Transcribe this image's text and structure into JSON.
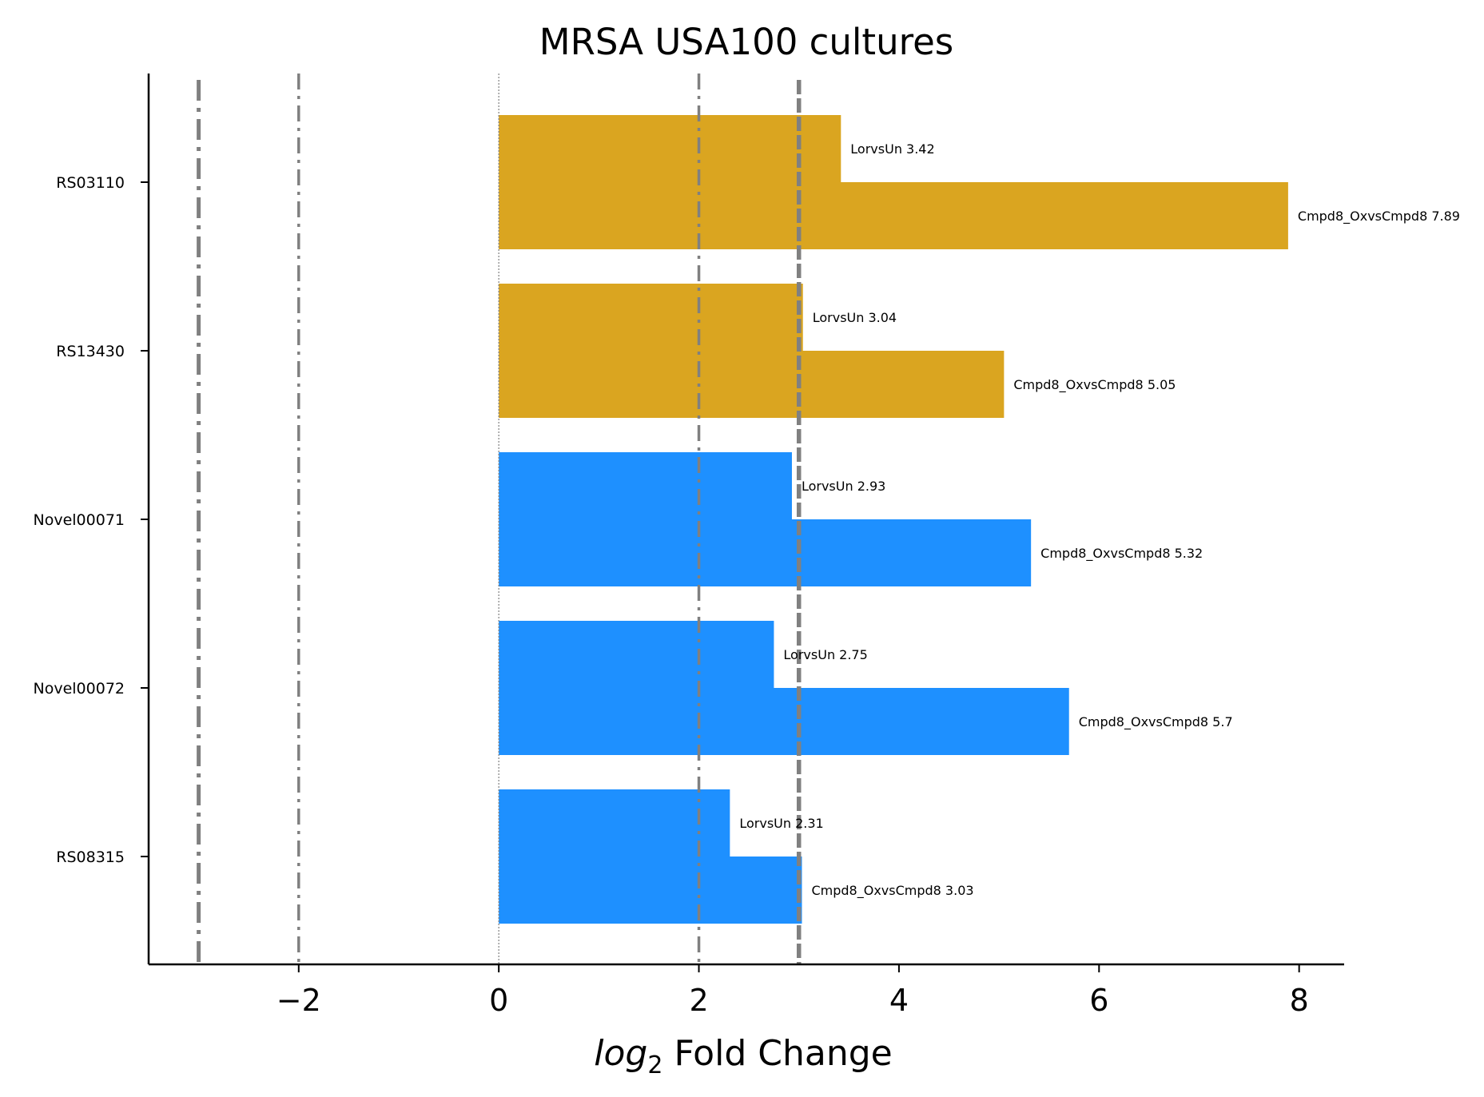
{
  "chart_data": {
    "type": "bar",
    "orientation": "horizontal",
    "title": "MRSA USA100 cultures",
    "xlabel_italic": "log",
    "xlabel_sub": "2",
    "xlabel_rest": " Fold Change",
    "xlim": [
      -3.5,
      8.45
    ],
    "xticks": [
      -2,
      0,
      2,
      4,
      6,
      8
    ],
    "xtick_labels": [
      "−2",
      "0",
      "2",
      "4",
      "6",
      "8"
    ],
    "categories": [
      "RS03110",
      "RS13430",
      "Novel00071",
      "Novel00072",
      "RS08315"
    ],
    "bars": [
      {
        "gene": "RS03110",
        "comparison": "LorvsUn",
        "label": "LorvsUn 3.42",
        "value": 3.42,
        "color": "#DAA520"
      },
      {
        "gene": "RS03110",
        "comparison": "Cmpd8_OxvsCmpd8",
        "label": "Cmpd8_OxvsCmpd8 7.89",
        "value": 7.89,
        "color": "#DAA520"
      },
      {
        "gene": "RS13430",
        "comparison": "LorvsUn",
        "label": "LorvsUn 3.04",
        "value": 3.04,
        "color": "#DAA520"
      },
      {
        "gene": "RS13430",
        "comparison": "Cmpd8_OxvsCmpd8",
        "label": "Cmpd8_OxvsCmpd8 5.05",
        "value": 5.05,
        "color": "#DAA520"
      },
      {
        "gene": "Novel00071",
        "comparison": "LorvsUn",
        "label": "LorvsUn 2.93",
        "value": 2.93,
        "color": "#1E90FF"
      },
      {
        "gene": "Novel00071",
        "comparison": "Cmpd8_OxvsCmpd8",
        "label": "Cmpd8_OxvsCmpd8 5.32",
        "value": 5.32,
        "color": "#1E90FF"
      },
      {
        "gene": "Novel00072",
        "comparison": "LorvsUn",
        "label": "LorvsUn 2.75",
        "value": 2.75,
        "color": "#1E90FF"
      },
      {
        "gene": "Novel00072",
        "comparison": "Cmpd8_OxvsCmpd8",
        "label": "Cmpd8_OxvsCmpd8 5.7",
        "value": 5.7,
        "color": "#1E90FF"
      },
      {
        "gene": "RS08315",
        "comparison": "LorvsUn",
        "label": "LorvsUn 2.31",
        "value": 2.31,
        "color": "#1E90FF"
      },
      {
        "gene": "RS08315",
        "comparison": "Cmpd8_OxvsCmpd8",
        "label": "Cmpd8_OxvsCmpd8 3.03",
        "value": 3.03,
        "color": "#1E90FF"
      }
    ],
    "reference_lines": [
      {
        "x": -3,
        "style": "dashdot-thick",
        "color": "#808080"
      },
      {
        "x": -2,
        "style": "dashdot",
        "color": "#808080"
      },
      {
        "x": 0,
        "style": "dotted",
        "color": "#808080"
      },
      {
        "x": 2,
        "style": "dashdot",
        "color": "#808080"
      },
      {
        "x": 3,
        "style": "dashed-thick",
        "color": "#808080"
      }
    ],
    "grid": false,
    "legend": "none"
  }
}
